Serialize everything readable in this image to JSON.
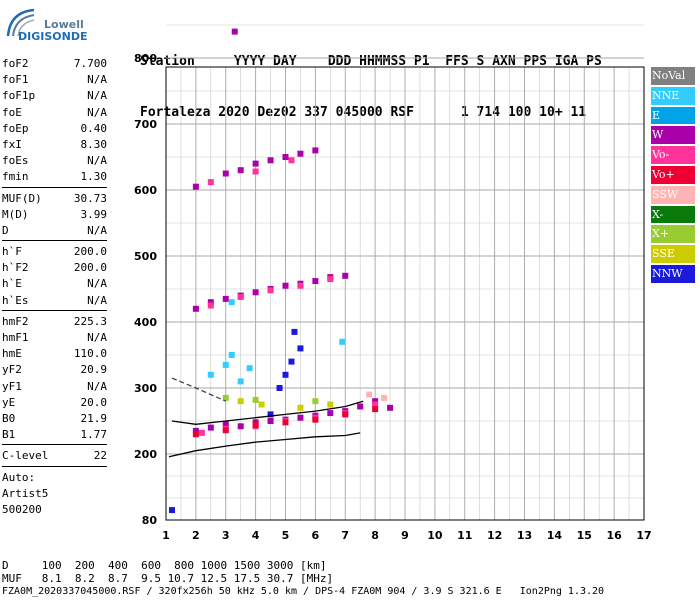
{
  "logo": {
    "line1": "Lowell",
    "line2": "DIGISONDE"
  },
  "header": {
    "line1": "Station     YYYY DAY    DDD HHMMSS P1  FFS S AXN PPS IGA PS",
    "line2": "Fortaleza 2020 Dez02 337 045000 RSF      1 714 100 10+ 11"
  },
  "params": [
    [
      [
        "foF2",
        "7.700"
      ],
      [
        "foF1",
        "N/A"
      ],
      [
        "foF1p",
        "N/A"
      ],
      [
        "foE",
        "N/A"
      ],
      [
        "foEp",
        "0.40"
      ],
      [
        "fxI",
        "8.30"
      ],
      [
        "foEs",
        "N/A"
      ],
      [
        "fmin",
        "1.30"
      ]
    ],
    [
      [
        "MUF(D)",
        "30.73"
      ],
      [
        "M(D)",
        "3.99"
      ],
      [
        "D",
        "N/A"
      ]
    ],
    [
      [
        "h`F",
        "200.0"
      ],
      [
        "h`F2",
        "200.0"
      ],
      [
        "h`E",
        "N/A"
      ],
      [
        "h`Es",
        "N/A"
      ]
    ],
    [
      [
        "hmF2",
        "225.3"
      ],
      [
        "hmF1",
        "N/A"
      ],
      [
        "hmE",
        "110.0"
      ],
      [
        "yF2",
        "20.9"
      ],
      [
        "yF1",
        "N/A"
      ],
      [
        "yE",
        "20.0"
      ],
      [
        "B0",
        "21.9"
      ],
      [
        "B1",
        "1.77"
      ]
    ],
    [
      [
        "C-level",
        "22"
      ]
    ],
    [
      [
        "Auto:",
        ""
      ],
      [
        "Artist5",
        ""
      ],
      [
        "500200",
        ""
      ]
    ]
  ],
  "legend": [
    {
      "label": "NoVal",
      "color": "#808080"
    },
    {
      "label": "NNE",
      "color": "#33ccff"
    },
    {
      "label": "E",
      "color": "#00a3e8"
    },
    {
      "label": "W",
      "color": "#aa00aa"
    },
    {
      "label": "Vo-",
      "color": "#ff3399"
    },
    {
      "label": "Vo+",
      "color": "#ee0033"
    },
    {
      "label": "SSW",
      "color": "#ffb3b3"
    },
    {
      "label": "X-",
      "color": "#0a7a0a"
    },
    {
      "label": "X+",
      "color": "#99cc33"
    },
    {
      "label": "SSE",
      "color": "#cccc00"
    },
    {
      "label": "NNW",
      "color": "#1a1add"
    }
  ],
  "footer": {
    "line1": "D     100  200  400  600  800 1000 1500 3000 [km]",
    "line2": "MUF   8.1  8.2  8.7  9.5 10.7 12.5 17.5 30.7 [MHz]",
    "line3": "FZA0M_2020337045000.RSF / 320fx256h 50 kHz 5.0 km / DPS-4 FZA0M 904 / 3.9 S 321.6 E   Ion2Png 1.3.20"
  },
  "chart_data": {
    "type": "scatter",
    "xlim": [
      1,
      17
    ],
    "ylim": [
      80,
      900
    ],
    "x_ticks": [
      1,
      2,
      3,
      4,
      5,
      6,
      7,
      8,
      9,
      10,
      11,
      12,
      13,
      14,
      15,
      16,
      17
    ],
    "y_ticks": [
      80,
      200,
      300,
      400,
      500,
      600,
      700,
      800,
      900
    ],
    "grid": true,
    "series": [
      {
        "name": "W",
        "color": "#aa00aa",
        "points": [
          [
            2.0,
            235
          ],
          [
            2.5,
            240
          ],
          [
            3.0,
            245
          ],
          [
            3.5,
            242
          ],
          [
            4.0,
            248
          ],
          [
            4.5,
            250
          ],
          [
            5.0,
            252
          ],
          [
            5.5,
            255
          ],
          [
            6.0,
            258
          ],
          [
            6.5,
            262
          ],
          [
            7.0,
            265
          ],
          [
            7.5,
            272
          ],
          [
            8.0,
            280
          ],
          [
            8.5,
            270
          ],
          [
            2.0,
            420
          ],
          [
            2.5,
            430
          ],
          [
            3.0,
            435
          ],
          [
            3.5,
            440
          ],
          [
            4.0,
            445
          ],
          [
            4.5,
            450
          ],
          [
            5.0,
            455
          ],
          [
            5.5,
            458
          ],
          [
            6.0,
            462
          ],
          [
            6.5,
            468
          ],
          [
            7.0,
            470
          ],
          [
            2.0,
            605
          ],
          [
            3.0,
            625
          ],
          [
            3.5,
            630
          ],
          [
            4.0,
            640
          ],
          [
            4.5,
            645
          ],
          [
            5.0,
            650
          ],
          [
            5.5,
            655
          ],
          [
            6.0,
            660
          ],
          [
            3.3,
            840
          ]
        ]
      },
      {
        "name": "Vo-",
        "color": "#ff3399",
        "points": [
          [
            2.2,
            232
          ],
          [
            3.0,
            238
          ],
          [
            4.0,
            242
          ],
          [
            5.0,
            250
          ],
          [
            6.0,
            255
          ],
          [
            7.0,
            262
          ],
          [
            8.0,
            275
          ],
          [
            2.5,
            425
          ],
          [
            3.5,
            438
          ],
          [
            4.5,
            448
          ],
          [
            5.5,
            455
          ],
          [
            6.5,
            465
          ],
          [
            2.5,
            612
          ],
          [
            4.0,
            628
          ],
          [
            5.2,
            645
          ]
        ]
      },
      {
        "name": "Vo+",
        "color": "#ee0033",
        "points": [
          [
            2.0,
            230
          ],
          [
            3.0,
            236
          ],
          [
            4.0,
            244
          ],
          [
            5.0,
            248
          ],
          [
            6.0,
            252
          ],
          [
            7.0,
            260
          ],
          [
            8.0,
            268
          ]
        ]
      },
      {
        "name": "NNE",
        "color": "#33ccff",
        "points": [
          [
            2.5,
            320
          ],
          [
            3.0,
            335
          ],
          [
            3.2,
            350
          ],
          [
            3.5,
            310
          ],
          [
            3.8,
            330
          ],
          [
            6.9,
            370
          ],
          [
            3.2,
            430
          ]
        ]
      },
      {
        "name": "NNW",
        "color": "#1a1add",
        "points": [
          [
            4.8,
            300
          ],
          [
            5.0,
            320
          ],
          [
            5.2,
            340
          ],
          [
            5.5,
            360
          ],
          [
            5.3,
            385
          ],
          [
            1.2,
            98
          ],
          [
            4.5,
            260
          ]
        ]
      },
      {
        "name": "SSE",
        "color": "#cccc00",
        "points": [
          [
            3.5,
            280
          ],
          [
            4.2,
            275
          ],
          [
            5.5,
            270
          ],
          [
            6.5,
            275
          ]
        ]
      },
      {
        "name": "X+",
        "color": "#99cc33",
        "points": [
          [
            3.0,
            285
          ],
          [
            4.0,
            282
          ],
          [
            6.0,
            280
          ]
        ]
      },
      {
        "name": "SSW",
        "color": "#ffb3b3",
        "points": [
          [
            8.3,
            285
          ],
          [
            7.8,
            290
          ]
        ]
      }
    ],
    "traces": [
      {
        "name": "O-trace",
        "color": "#000000",
        "points": [
          [
            1.1,
            195
          ],
          [
            2.0,
            205
          ],
          [
            3.0,
            212
          ],
          [
            4.0,
            218
          ],
          [
            5.0,
            222
          ],
          [
            6.0,
            226
          ],
          [
            7.0,
            228
          ],
          [
            7.5,
            232
          ]
        ]
      },
      {
        "name": "X-trace",
        "color": "#000000",
        "points": [
          [
            1.2,
            250
          ],
          [
            2.0,
            245
          ],
          [
            3.0,
            250
          ],
          [
            4.0,
            255
          ],
          [
            5.0,
            260
          ],
          [
            6.0,
            265
          ],
          [
            7.0,
            272
          ],
          [
            7.6,
            280
          ]
        ]
      },
      {
        "name": "profile",
        "color": "#444444",
        "dashed": true,
        "points": [
          [
            1.2,
            315
          ],
          [
            2.0,
            300
          ],
          [
            2.5,
            290
          ],
          [
            3.0,
            280
          ]
        ]
      }
    ]
  }
}
